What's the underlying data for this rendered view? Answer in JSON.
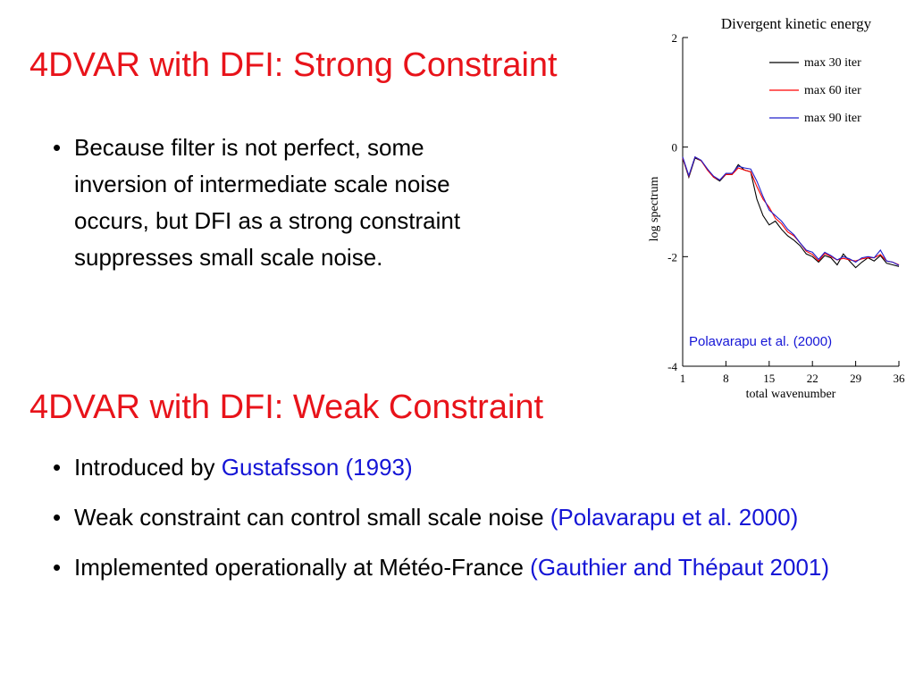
{
  "slide": {
    "title1": "4DVAR with DFI: Strong Constraint",
    "bullets1": [
      {
        "parts": [
          {
            "text": "Because filter is not perfect, some inversion of intermediate scale noise occurs, but DFI as a strong constraint suppresses small scale noise.",
            "ref": false
          }
        ]
      }
    ],
    "title2": "4DVAR with DFI: Weak Constraint",
    "bullets2": [
      {
        "parts": [
          {
            "text": "Introduced by ",
            "ref": false
          },
          {
            "text": "Gustafsson (1993)",
            "ref": true
          }
        ]
      },
      {
        "parts": [
          {
            "text": "Weak constraint can control small scale noise ",
            "ref": false
          },
          {
            "text": "(Polavarapu et al. 2000)",
            "ref": true
          }
        ]
      },
      {
        "parts": [
          {
            "text": "Implemented operationally at Météo-France ",
            "ref": false
          },
          {
            "text": "(Gauthier and Thépaut 2001)",
            "ref": true
          }
        ]
      }
    ],
    "bullet_glyph": "•"
  },
  "colors": {
    "title": "#e8131a",
    "reference": "#1515d6"
  },
  "chart_data": {
    "type": "line",
    "title": "Divergent kinetic energy",
    "xlabel": "total wavenumber",
    "ylabel": "log spectrum",
    "xlim": [
      1,
      36
    ],
    "ylim": [
      -4,
      2
    ],
    "xticks": [
      1,
      8,
      15,
      22,
      29,
      36
    ],
    "xtick_labels": [
      "1",
      "8",
      "15",
      "22",
      "29",
      "36"
    ],
    "yticks": [
      2,
      0,
      -2,
      -4
    ],
    "ytick_labels": [
      "2",
      "0",
      "-2",
      "-4"
    ],
    "grid": false,
    "legend": "top-right",
    "annotation": "Polavarapu et al. (2000)",
    "annotation_color": "#1515d6",
    "x": [
      1,
      2,
      3,
      4,
      5,
      6,
      7,
      8,
      9,
      10,
      11,
      12,
      13,
      14,
      15,
      16,
      17,
      18,
      19,
      20,
      21,
      22,
      23,
      24,
      25,
      26,
      27,
      28,
      29,
      30,
      31,
      32,
      33,
      34,
      35,
      36
    ],
    "series": [
      {
        "name": "max 30 iter",
        "color": "#000000",
        "values": [
          -0.2,
          -0.55,
          -0.2,
          -0.25,
          -0.4,
          -0.55,
          -0.62,
          -0.5,
          -0.5,
          -0.32,
          -0.42,
          -0.45,
          -0.95,
          -1.25,
          -1.42,
          -1.35,
          -1.5,
          -1.62,
          -1.7,
          -1.8,
          -1.95,
          -2.0,
          -2.1,
          -1.98,
          -2.02,
          -2.15,
          -1.95,
          -2.08,
          -2.2,
          -2.1,
          -2.02,
          -2.08,
          -1.98,
          -2.12,
          -2.15,
          -2.18
        ]
      },
      {
        "name": "max 60 iter",
        "color": "#ff0000",
        "values": [
          -0.2,
          -0.53,
          -0.18,
          -0.25,
          -0.42,
          -0.55,
          -0.6,
          -0.5,
          -0.5,
          -0.38,
          -0.42,
          -0.45,
          -0.72,
          -0.95,
          -1.1,
          -1.3,
          -1.4,
          -1.55,
          -1.62,
          -1.75,
          -1.9,
          -1.96,
          -2.08,
          -1.94,
          -2.0,
          -2.06,
          -2.03,
          -2.06,
          -2.08,
          -2.04,
          -2.02,
          -2.02,
          -1.96,
          -2.08,
          -2.1,
          -2.15
        ]
      },
      {
        "name": "max 90 iter",
        "color": "#2020cc",
        "values": [
          -0.18,
          -0.52,
          -0.18,
          -0.24,
          -0.4,
          -0.53,
          -0.6,
          -0.48,
          -0.48,
          -0.35,
          -0.38,
          -0.4,
          -0.62,
          -0.9,
          -1.15,
          -1.25,
          -1.35,
          -1.5,
          -1.6,
          -1.75,
          -1.88,
          -1.92,
          -2.05,
          -1.92,
          -1.98,
          -2.06,
          -2.0,
          -2.04,
          -2.1,
          -2.02,
          -2.0,
          -2.02,
          -1.88,
          -2.08,
          -2.1,
          -2.16
        ]
      }
    ]
  }
}
